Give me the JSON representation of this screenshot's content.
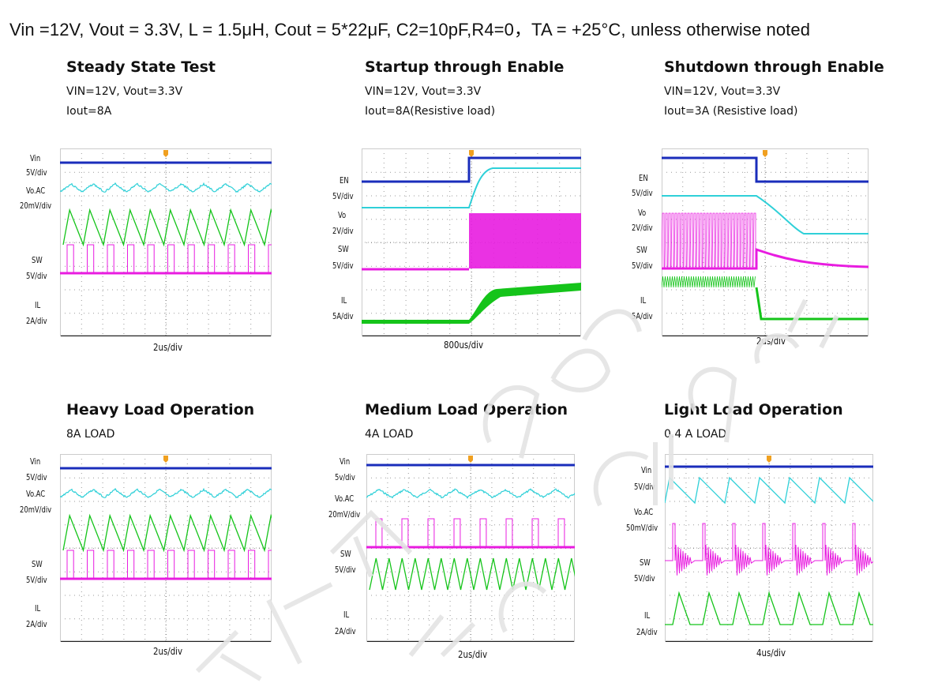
{
  "header": "Vin =12V, Vout = 3.3V, L = 1.5μH, Cout = 5*22μF, C2=10pF,R4=0，TA = +25°C, unless otherwise noted",
  "panels": [
    {
      "title": "Steady State Test",
      "sub1": "VIN=12V, Vout=3.3V",
      "sub2": "Iout=8A",
      "time": "2us/div",
      "labels": [
        "Vin",
        "5V/div",
        "Vo.AC",
        "20mV/div",
        "SW",
        "5V/div",
        "IL",
        "2A/div"
      ]
    },
    {
      "title": "Startup through Enable",
      "sub1": "VIN=12V, Vout=3.3V",
      "sub2": "Iout=8A(Resistive load)",
      "time": "800us/div",
      "labels": [
        "EN",
        "5V/div",
        "Vo",
        "2V/div",
        "SW",
        "5V/div",
        "IL",
        "5A/div"
      ]
    },
    {
      "title": "Shutdown through Enable",
      "sub1": "VIN=12V, Vout=3.3V",
      "sub2": "Iout=3A (Resistive load)",
      "time": "2us/div",
      "labels": [
        "EN",
        "5V/div",
        "Vo",
        "2V/div",
        "SW",
        "5V/div",
        "IL",
        "5A/div"
      ]
    },
    {
      "title": "Heavy Load Operation",
      "sub1": "8A LOAD",
      "time": "2us/div",
      "labels": [
        "Vin",
        "5V/div",
        "Vo.AC",
        "20mV/div",
        "SW",
        "5V/div",
        "IL",
        "2A/div"
      ]
    },
    {
      "title": "Medium Load Operation",
      "sub1": "4A LOAD",
      "time": "2us/div",
      "labels": [
        "Vin",
        "5v/div",
        "Vo.AC",
        "20mV/div",
        "SW",
        "5V/div",
        "IL",
        "2A/div"
      ]
    },
    {
      "title": "Light Load Operation",
      "sub1": "0.4 A LOAD",
      "time": "4us/div",
      "labels": [
        "Vin",
        "5V/div",
        "Vo.AC",
        "50mV/div",
        "SW",
        "5V/div",
        "IL",
        "2A/div"
      ]
    }
  ],
  "colors": {
    "ch1": "#1a2dbb",
    "ch2": "#2fd0d8",
    "ch3": "#e81ce0",
    "ch4": "#15c41a",
    "grid": "#9a9a9a",
    "marker": "#f0a020"
  }
}
